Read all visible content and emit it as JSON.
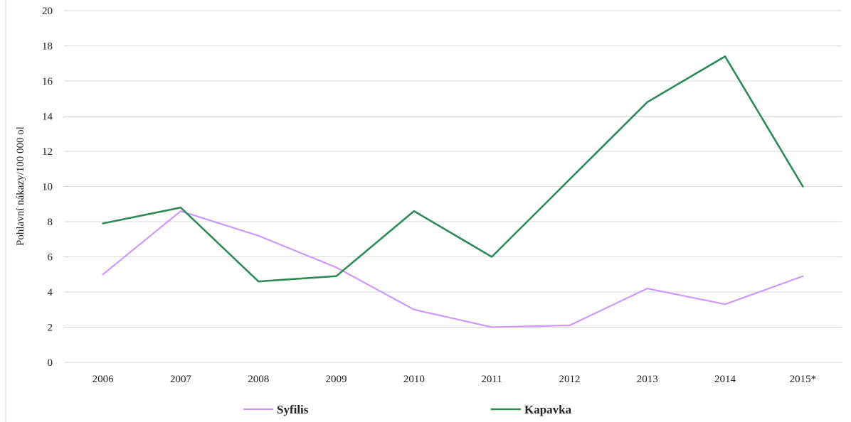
{
  "chart_data": {
    "type": "line",
    "title": "",
    "xlabel": "",
    "ylabel": "Pohlavní nákazy/100 000 ol",
    "ylim": [
      0,
      20
    ],
    "yticks": [
      "0",
      "2",
      "4",
      "6",
      "8",
      "10",
      "12",
      "14",
      "16",
      "18",
      "20"
    ],
    "categories": [
      "2006",
      "2007",
      "2008",
      "2009",
      "2010",
      "2011",
      "2012",
      "2013",
      "2014",
      "2015*"
    ],
    "grid": true,
    "legend_position": "bottom",
    "series": [
      {
        "name": "Syfilis",
        "color": "#cc99ff",
        "values": [
          5.0,
          8.6,
          7.2,
          5.4,
          3.0,
          2.0,
          2.1,
          4.2,
          3.3,
          4.9
        ]
      },
      {
        "name": "Kapavka",
        "color": "#2e8b57",
        "values": [
          7.9,
          8.8,
          4.6,
          4.9,
          8.6,
          6.0,
          10.4,
          14.8,
          17.4,
          10.0
        ]
      }
    ]
  }
}
